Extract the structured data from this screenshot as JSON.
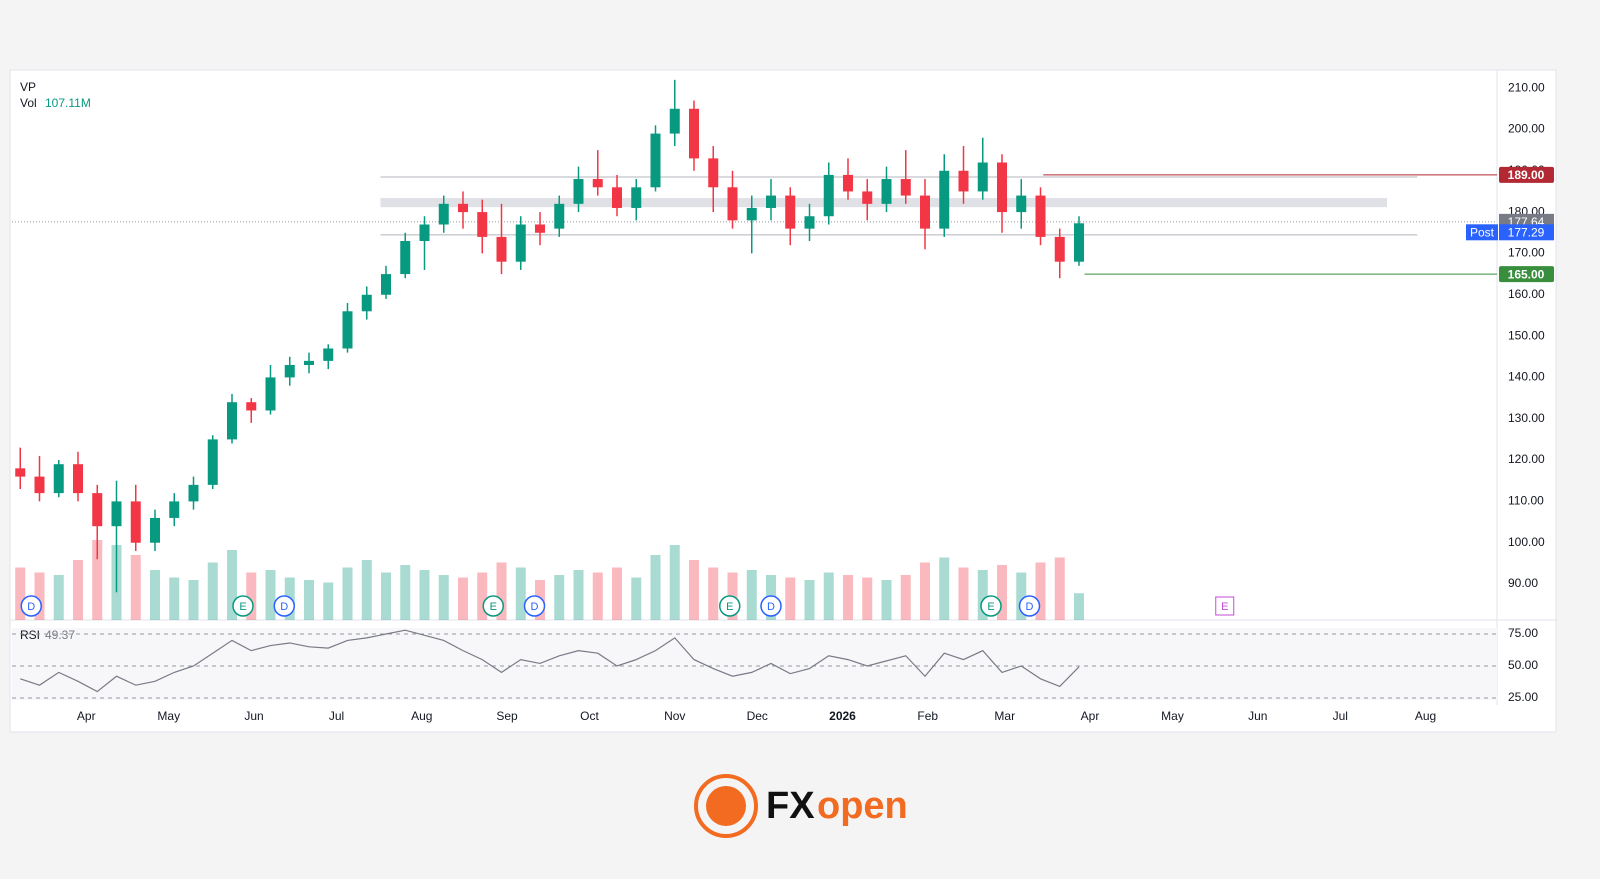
{
  "chart_data": {
    "type": "candlestick",
    "indicator_label": "VP",
    "volume_label": "Vol",
    "volume_value_label": "107.11M",
    "rsi_label": "RSI",
    "rsi_value_label": "49.37",
    "up_color": "#089981",
    "down_color": "#f23645",
    "xlim": [
      0,
      540
    ],
    "xticks": [
      {
        "value": 27,
        "label": "Apr"
      },
      {
        "value": 57,
        "label": "May"
      },
      {
        "value": 88,
        "label": "Jun"
      },
      {
        "value": 118,
        "label": "Jul"
      },
      {
        "value": 149,
        "label": "Aug"
      },
      {
        "value": 180,
        "label": "Sep"
      },
      {
        "value": 210,
        "label": "Oct"
      },
      {
        "value": 241,
        "label": "Nov"
      },
      {
        "value": 271,
        "label": "Dec"
      },
      {
        "value": 302,
        "label": "2026",
        "bold": true
      },
      {
        "value": 333,
        "label": "Feb"
      },
      {
        "value": 361,
        "label": "Mar"
      },
      {
        "value": 392,
        "label": "Apr"
      },
      {
        "value": 422,
        "label": "May"
      },
      {
        "value": 453,
        "label": "Jun"
      },
      {
        "value": 483,
        "label": "Jul"
      },
      {
        "value": 514,
        "label": "Aug"
      }
    ],
    "ylim": [
      81.3,
      213.9
    ],
    "yticks": [
      {
        "value": 90,
        "label": "90.00"
      },
      {
        "value": 100,
        "label": "100.00"
      },
      {
        "value": 110,
        "label": "110.00"
      },
      {
        "value": 120,
        "label": "120.00"
      },
      {
        "value": 130,
        "label": "130.00"
      },
      {
        "value": 140,
        "label": "140.00"
      },
      {
        "value": 150,
        "label": "150.00"
      },
      {
        "value": 160,
        "label": "160.00"
      },
      {
        "value": 170,
        "label": "170.00"
      },
      {
        "value": 180,
        "label": "180.00"
      },
      {
        "value": 190,
        "label": "190.00"
      },
      {
        "value": 200,
        "label": "200.00"
      },
      {
        "value": 210,
        "label": "210.00"
      }
    ],
    "candles": {
      "x": [
        3,
        10,
        17,
        24,
        31,
        38,
        45,
        52,
        59,
        66,
        73,
        80,
        87,
        94,
        101,
        108,
        115,
        122,
        129,
        136,
        143,
        150,
        157,
        164,
        171,
        178,
        185,
        192,
        199,
        206,
        213,
        220,
        227,
        234,
        241,
        248,
        255,
        262,
        269,
        276,
        283,
        290,
        297,
        304,
        311,
        318,
        325,
        332,
        339,
        346,
        353,
        360,
        367,
        374,
        381,
        388
      ],
      "open": [
        118,
        116,
        112,
        119,
        112,
        104,
        110,
        100,
        106,
        110,
        114,
        125,
        134,
        132,
        140,
        143,
        144,
        147,
        156,
        160,
        165,
        173,
        177,
        182,
        180,
        174,
        168,
        177,
        176,
        182,
        188,
        186,
        181,
        186,
        199,
        205,
        193,
        186,
        178,
        181,
        184,
        176,
        179,
        189,
        185,
        182,
        188,
        184,
        176,
        190,
        185,
        192,
        180,
        184,
        174,
        168
      ],
      "high": [
        123,
        121,
        120,
        122,
        114,
        115,
        114,
        108,
        112,
        116,
        126,
        136,
        135,
        143,
        145,
        146,
        148,
        158,
        162,
        167,
        175,
        179,
        184,
        185,
        183,
        182,
        179,
        180,
        184,
        191,
        195,
        189,
        188,
        201,
        212,
        207,
        196,
        190,
        184,
        188,
        186,
        182,
        192,
        193,
        188,
        191,
        195,
        188,
        194,
        196,
        198,
        194,
        188,
        186,
        176,
        179
      ],
      "low": [
        113,
        110,
        111,
        110,
        96,
        88,
        98,
        98,
        104,
        108,
        113,
        124,
        129,
        131,
        138,
        141,
        142,
        146,
        154,
        159,
        164,
        166,
        175,
        176,
        170,
        165,
        166,
        172,
        174,
        180,
        184,
        179,
        178,
        185,
        196,
        190,
        180,
        176,
        170,
        178,
        172,
        173,
        177,
        183,
        178,
        180,
        182,
        171,
        174,
        182,
        183,
        175,
        176,
        172,
        164,
        167
      ],
      "close": [
        116,
        112,
        119,
        112,
        104,
        110,
        100,
        106,
        110,
        114,
        125,
        134,
        132,
        140,
        143,
        144,
        147,
        156,
        160,
        165,
        173,
        177,
        182,
        180,
        174,
        168,
        177,
        175,
        182,
        188,
        186,
        181,
        186,
        199,
        205,
        193,
        186,
        178,
        181,
        184,
        176,
        179,
        189,
        185,
        182,
        188,
        184,
        176,
        190,
        185,
        192,
        180,
        184,
        174,
        168,
        177.29
      ],
      "volume": [
        210,
        190,
        180,
        240,
        320,
        300,
        260,
        200,
        170,
        160,
        230,
        280,
        190,
        200,
        170,
        160,
        150,
        210,
        240,
        190,
        220,
        200,
        180,
        170,
        190,
        230,
        210,
        160,
        180,
        200,
        190,
        210,
        170,
        260,
        300,
        240,
        210,
        190,
        200,
        180,
        170,
        160,
        190,
        180,
        170,
        160,
        180,
        230,
        250,
        210,
        200,
        220,
        190,
        230,
        250,
        107.11
      ]
    },
    "rsi": {
      "values": [
        40,
        35,
        45,
        38,
        30,
        42,
        35,
        38,
        45,
        50,
        60,
        70,
        62,
        66,
        68,
        65,
        64,
        70,
        72,
        75,
        78,
        74,
        70,
        62,
        55,
        45,
        55,
        52,
        58,
        62,
        60,
        50,
        55,
        62,
        72,
        55,
        48,
        42,
        45,
        52,
        44,
        48,
        58,
        55,
        50,
        54,
        58,
        42,
        60,
        55,
        62,
        45,
        50,
        40,
        34,
        49.37
      ],
      "color": "#787b86",
      "ylim": [
        19.5,
        84.4
      ],
      "yticks": [
        {
          "value": 25,
          "label": "25.00"
        },
        {
          "value": 50,
          "label": "50.00"
        },
        {
          "value": 75,
          "label": "75.00"
        }
      ]
    },
    "zones": [
      {
        "from": 134,
        "to": 500,
        "low": 181.2,
        "high": 183.4
      }
    ],
    "lines": [
      {
        "value": 188.5,
        "from": 134,
        "to": 511
      },
      {
        "value": 174.5,
        "from": 134,
        "to": 511
      }
    ],
    "levels": [
      {
        "value": 189,
        "label": "189.00",
        "color": "#b22833",
        "from": 375
      },
      {
        "value": 165,
        "label": "165.00",
        "color": "#388e3c",
        "from": 390
      }
    ],
    "last_price": {
      "value": 177.64,
      "label": "177.64",
      "color": "#787b86"
    },
    "post": {
      "name": "Post",
      "value": 177.29,
      "label": "177.29",
      "color": "#2962ff"
    },
    "events": [
      {
        "label": "D",
        "x": 7
      },
      {
        "label": "E",
        "x": 84
      },
      {
        "label": "D",
        "x": 99
      },
      {
        "label": "E",
        "x": 175
      },
      {
        "label": "D",
        "x": 190
      },
      {
        "label": "E",
        "x": 261
      },
      {
        "label": "D",
        "x": 276
      },
      {
        "label": "E",
        "x": 356
      },
      {
        "label": "D",
        "x": 370
      },
      {
        "label": "E",
        "x": 441,
        "future": true
      }
    ]
  },
  "footer": {
    "logo_text": [
      "FX",
      "open"
    ]
  }
}
